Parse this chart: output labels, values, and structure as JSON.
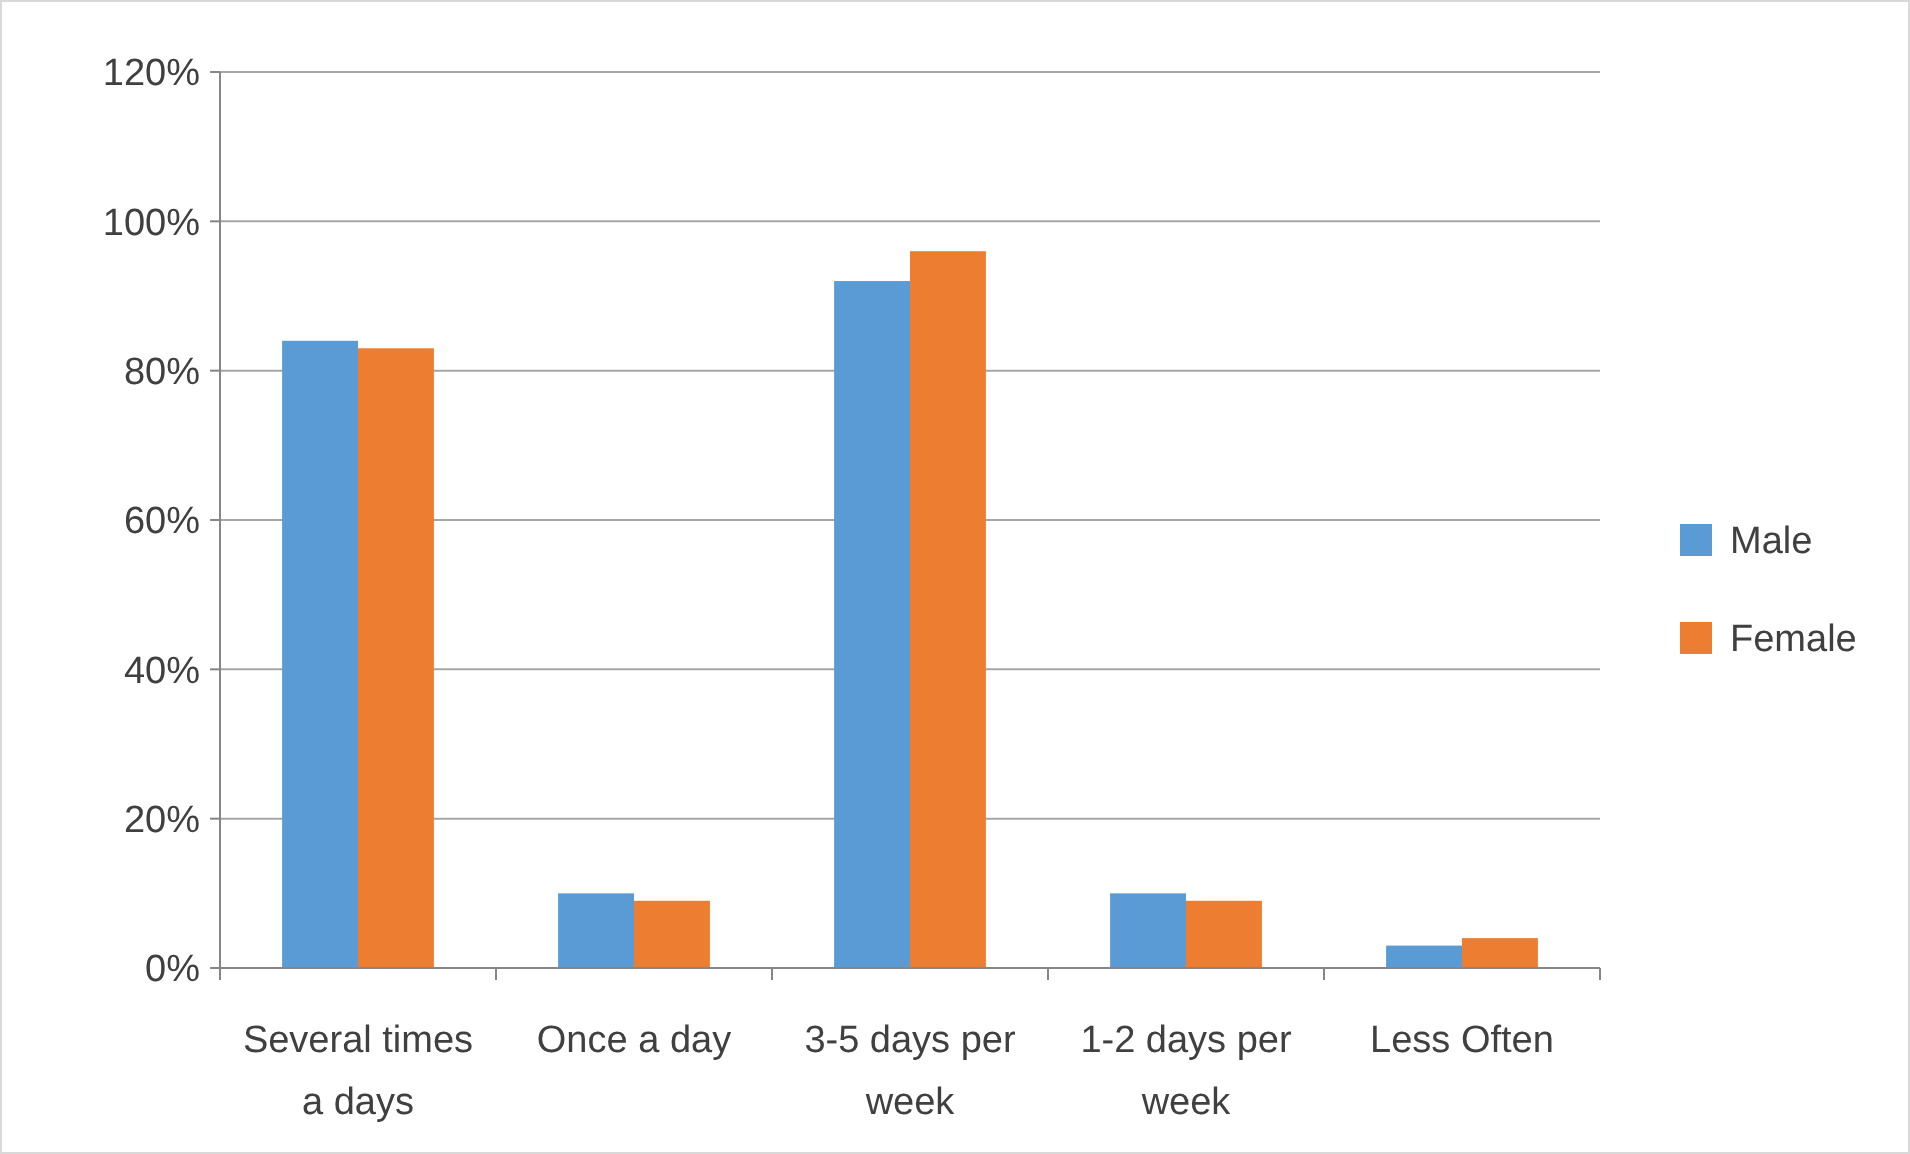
{
  "chart_data": {
    "type": "bar",
    "categories": [
      "Several times a days",
      "Once a day",
      "3-5 days per week",
      "1-2 days per week",
      "Less Often"
    ],
    "series": [
      {
        "name": "Male",
        "color": "#5b9bd5",
        "values": [
          84,
          10,
          92,
          10,
          3
        ]
      },
      {
        "name": "Female",
        "color": "#ed7d31",
        "values": [
          83,
          9,
          96,
          9,
          4
        ]
      }
    ],
    "ylim": [
      0,
      120
    ],
    "yticks": [
      {
        "value": 0,
        "label": "0%"
      },
      {
        "value": 20,
        "label": "20%"
      },
      {
        "value": 40,
        "label": "40%"
      },
      {
        "value": 60,
        "label": "60%"
      },
      {
        "value": 80,
        "label": "80%"
      },
      {
        "value": 100,
        "label": "100%"
      },
      {
        "value": 120,
        "label": "120%"
      }
    ],
    "grid": "y",
    "legend": "right"
  }
}
